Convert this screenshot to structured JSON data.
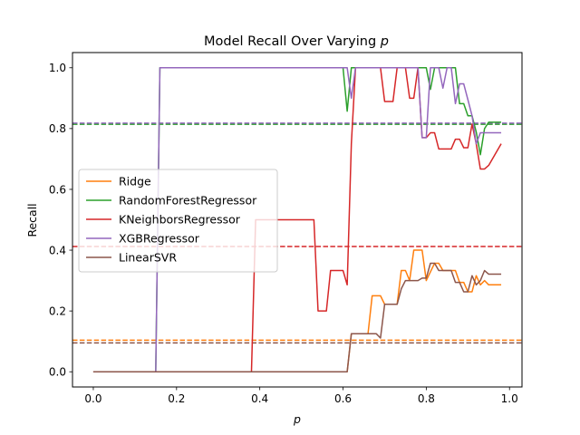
{
  "chart_data": {
    "type": "line",
    "title": "Model Recall Over Varying",
    "title_symbol": "p",
    "xlabel": "p",
    "ylabel": "Recall",
    "xlim": [
      -0.05,
      1.03
    ],
    "ylim": [
      -0.05,
      1.05
    ],
    "xticks": [
      0.0,
      0.2,
      0.4,
      0.6,
      0.8,
      1.0
    ],
    "xtick_labels": [
      "0.0",
      "0.2",
      "0.4",
      "0.6",
      "0.8",
      "1.0"
    ],
    "yticks": [
      0.0,
      0.2,
      0.4,
      0.6,
      0.8,
      1.0
    ],
    "ytick_labels": [
      "0.0",
      "0.2",
      "0.4",
      "0.6",
      "0.8",
      "1.0"
    ],
    "grid": false,
    "legend_position": "center-left",
    "series": [
      {
        "name": "Ridge",
        "color": "#ff7f0e",
        "mean_line": 0.104,
        "points": [
          [
            0.0,
            0.0
          ],
          [
            0.61,
            0.0
          ],
          [
            0.62,
            0.125
          ],
          [
            0.66,
            0.125
          ],
          [
            0.67,
            0.25
          ],
          [
            0.69,
            0.25
          ],
          [
            0.7,
            0.222
          ],
          [
            0.73,
            0.222
          ],
          [
            0.74,
            0.333
          ],
          [
            0.75,
            0.333
          ],
          [
            0.76,
            0.3
          ],
          [
            0.77,
            0.4
          ],
          [
            0.79,
            0.4
          ],
          [
            0.8,
            0.3
          ],
          [
            0.82,
            0.357
          ],
          [
            0.83,
            0.357
          ],
          [
            0.84,
            0.333
          ],
          [
            0.87,
            0.333
          ],
          [
            0.88,
            0.294
          ],
          [
            0.89,
            0.294
          ],
          [
            0.9,
            0.263
          ],
          [
            0.91,
            0.263
          ],
          [
            0.92,
            0.316
          ],
          [
            0.93,
            0.286
          ],
          [
            0.94,
            0.3
          ],
          [
            0.95,
            0.286
          ],
          [
            0.98,
            0.286
          ]
        ]
      },
      {
        "name": "RandomForestRegressor",
        "color": "#2ca02c",
        "mean_line": 0.814,
        "points": [
          [
            0.0,
            0.0
          ],
          [
            0.15,
            0.0
          ],
          [
            0.16,
            1.0
          ],
          [
            0.6,
            1.0
          ],
          [
            0.61,
            0.857
          ],
          [
            0.62,
            1.0
          ],
          [
            0.8,
            1.0
          ],
          [
            0.81,
            0.929
          ],
          [
            0.82,
            1.0
          ],
          [
            0.87,
            1.0
          ],
          [
            0.88,
            0.882
          ],
          [
            0.89,
            0.882
          ],
          [
            0.9,
            0.842
          ],
          [
            0.91,
            0.842
          ],
          [
            0.92,
            0.789
          ],
          [
            0.93,
            0.714
          ],
          [
            0.94,
            0.8
          ],
          [
            0.95,
            0.821
          ],
          [
            0.98,
            0.821
          ]
        ]
      },
      {
        "name": "KNeighborsRegressor",
        "color": "#d62728",
        "mean_line": 0.412,
        "points": [
          [
            0.0,
            0.0
          ],
          [
            0.38,
            0.0
          ],
          [
            0.39,
            0.5
          ],
          [
            0.53,
            0.5
          ],
          [
            0.54,
            0.2
          ],
          [
            0.56,
            0.2
          ],
          [
            0.57,
            0.333
          ],
          [
            0.6,
            0.333
          ],
          [
            0.61,
            0.286
          ],
          [
            0.62,
            0.75
          ],
          [
            0.63,
            1.0
          ],
          [
            0.69,
            1.0
          ],
          [
            0.7,
            0.889
          ],
          [
            0.72,
            0.889
          ],
          [
            0.73,
            1.0
          ],
          [
            0.75,
            1.0
          ],
          [
            0.76,
            0.9
          ],
          [
            0.77,
            0.9
          ],
          [
            0.78,
            1.0
          ],
          [
            0.79,
            0.77
          ],
          [
            0.8,
            0.77
          ],
          [
            0.81,
            0.786
          ],
          [
            0.82,
            0.786
          ],
          [
            0.83,
            0.733
          ],
          [
            0.86,
            0.733
          ],
          [
            0.87,
            0.765
          ],
          [
            0.88,
            0.765
          ],
          [
            0.89,
            0.737
          ],
          [
            0.9,
            0.737
          ],
          [
            0.91,
            0.815
          ],
          [
            0.92,
            0.75
          ],
          [
            0.93,
            0.667
          ],
          [
            0.94,
            0.667
          ],
          [
            0.95,
            0.679
          ],
          [
            0.98,
            0.75
          ]
        ]
      },
      {
        "name": "XGBRegressor",
        "color": "#9467bd",
        "mean_line": 0.818,
        "points": [
          [
            0.0,
            0.0
          ],
          [
            0.15,
            0.0
          ],
          [
            0.16,
            1.0
          ],
          [
            0.61,
            1.0
          ],
          [
            0.62,
            0.9
          ],
          [
            0.63,
            1.0
          ],
          [
            0.78,
            1.0
          ],
          [
            0.79,
            0.77
          ],
          [
            0.8,
            0.77
          ],
          [
            0.81,
            1.0
          ],
          [
            0.83,
            1.0
          ],
          [
            0.84,
            0.933
          ],
          [
            0.85,
            1.0
          ],
          [
            0.86,
            1.0
          ],
          [
            0.87,
            0.882
          ],
          [
            0.88,
            0.947
          ],
          [
            0.89,
            0.947
          ],
          [
            0.9,
            0.895
          ],
          [
            0.91,
            0.842
          ],
          [
            0.92,
            0.75
          ],
          [
            0.93,
            0.786
          ],
          [
            0.94,
            0.786
          ],
          [
            0.95,
            0.786
          ],
          [
            0.98,
            0.786
          ]
        ]
      },
      {
        "name": "LinearSVR",
        "color": "#8c564b",
        "mean_line": 0.095,
        "points": [
          [
            0.0,
            0.0
          ],
          [
            0.61,
            0.0
          ],
          [
            0.62,
            0.125
          ],
          [
            0.68,
            0.125
          ],
          [
            0.69,
            0.111
          ],
          [
            0.7,
            0.222
          ],
          [
            0.73,
            0.222
          ],
          [
            0.74,
            0.273
          ],
          [
            0.75,
            0.3
          ],
          [
            0.78,
            0.3
          ],
          [
            0.79,
            0.308
          ],
          [
            0.8,
            0.308
          ],
          [
            0.81,
            0.357
          ],
          [
            0.82,
            0.357
          ],
          [
            0.83,
            0.333
          ],
          [
            0.86,
            0.333
          ],
          [
            0.87,
            0.294
          ],
          [
            0.88,
            0.294
          ],
          [
            0.89,
            0.263
          ],
          [
            0.9,
            0.263
          ],
          [
            0.91,
            0.316
          ],
          [
            0.92,
            0.286
          ],
          [
            0.93,
            0.3
          ],
          [
            0.94,
            0.333
          ],
          [
            0.95,
            0.321
          ],
          [
            0.98,
            0.321
          ]
        ]
      }
    ]
  }
}
